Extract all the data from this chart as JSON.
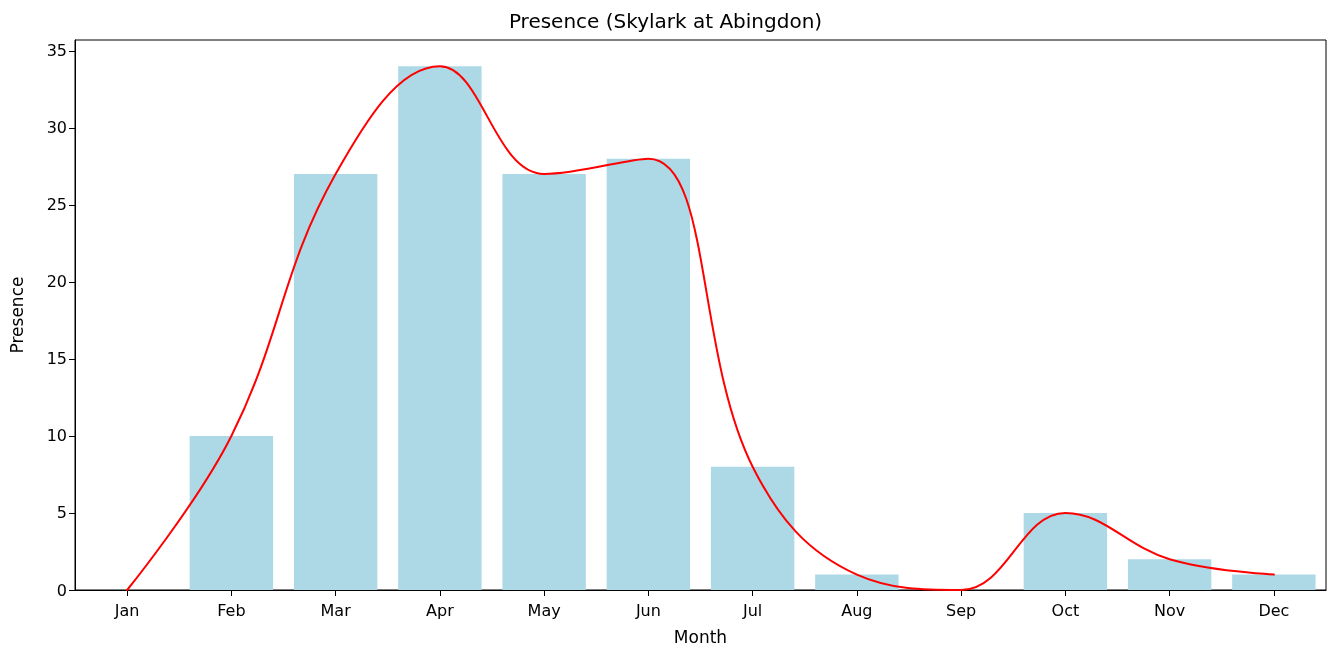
{
  "chart_data": {
    "type": "bar",
    "title": "Presence (Skylark at Abingdon)",
    "xlabel": "Month",
    "ylabel": "Presence",
    "categories": [
      "Jan",
      "Feb",
      "Mar",
      "Apr",
      "May",
      "Jun",
      "Jul",
      "Aug",
      "Sep",
      "Oct",
      "Nov",
      "Dec"
    ],
    "series": [
      {
        "color": "#add8e6",
        "values": [
          0,
          10,
          27,
          34,
          27,
          28,
          8,
          1,
          0,
          5,
          2,
          1
        ]
      },
      {
        "type": "line",
        "color": "#ff0000",
        "values": [
          0,
          10,
          27,
          34,
          27,
          28,
          8,
          1,
          0,
          5,
          2,
          1
        ]
      }
    ],
    "ylim": [
      0,
      35.7
    ],
    "yticks": [
      0,
      5,
      10,
      15,
      20,
      25,
      30,
      35
    ],
    "grid": false,
    "marker": "none",
    "line_style": "solid"
  }
}
